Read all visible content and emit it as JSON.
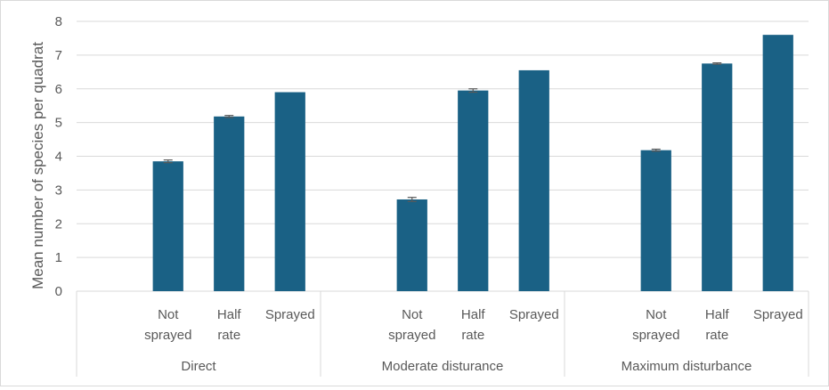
{
  "chart_data": {
    "type": "bar",
    "ylabel": "Mean number of species per quadrat",
    "ylim": [
      0,
      8
    ],
    "yticks": [
      0,
      1,
      2,
      3,
      4,
      5,
      6,
      7,
      8
    ],
    "grid": true,
    "bar_color": "#1a6185",
    "error_color": "#595959",
    "groups": [
      {
        "label": "Direct",
        "categories": [
          {
            "lines": [
              "Not",
              "sprayed"
            ],
            "value": 3.85,
            "error": 0.04
          },
          {
            "lines": [
              "Half",
              "rate"
            ],
            "value": 5.18,
            "error": 0.03
          },
          {
            "lines": [
              "Sprayed"
            ],
            "value": 5.9,
            "error": 0
          }
        ]
      },
      {
        "label": "Moderate disturance",
        "categories": [
          {
            "lines": [
              "Not",
              "sprayed"
            ],
            "value": 2.72,
            "error": 0.06
          },
          {
            "lines": [
              "Half",
              "rate"
            ],
            "value": 5.95,
            "error": 0.05
          },
          {
            "lines": [
              "Sprayed"
            ],
            "value": 6.55,
            "error": 0
          }
        ]
      },
      {
        "label": "Maximum disturbance",
        "categories": [
          {
            "lines": [
              "Not",
              "sprayed"
            ],
            "value": 4.18,
            "error": 0.03
          },
          {
            "lines": [
              "Half",
              "rate"
            ],
            "value": 6.75,
            "error": 0.02
          },
          {
            "lines": [
              "Sprayed"
            ],
            "value": 7.6,
            "error": 0
          }
        ]
      }
    ]
  }
}
